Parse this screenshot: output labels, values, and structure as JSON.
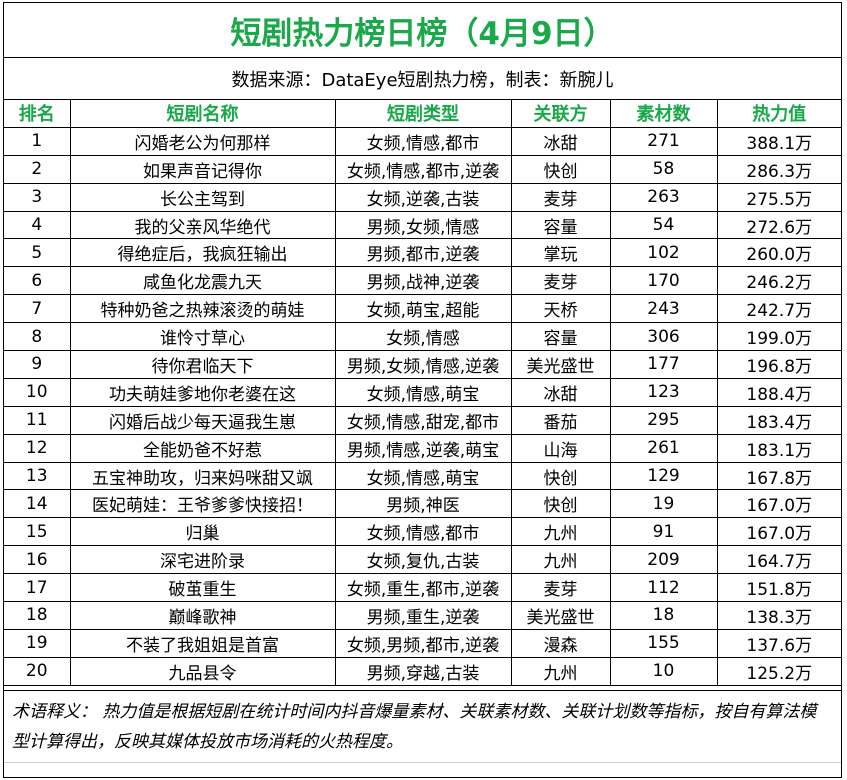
{
  "title": "短剧热力榜日榜（4月9日）",
  "source": "数据来源：DataEye短剧热力榜，制表：新腕儿",
  "headers": [
    "排名",
    "短剧名称",
    "短剧类型",
    "关联方",
    "素材数",
    "热力值"
  ],
  "rows": [
    {
      "rank": "1",
      "name": "闪婚老公为何那样",
      "type": "女频,情感,都市",
      "partner": "冰甜",
      "materials": "271",
      "heat": "388.1万"
    },
    {
      "rank": "2",
      "name": "如果声音记得你",
      "type": "女频,情感,都市,逆袭",
      "partner": "快创",
      "materials": "58",
      "heat": "286.3万"
    },
    {
      "rank": "3",
      "name": "长公主驾到",
      "type": "女频,逆袭,古装",
      "partner": "麦芽",
      "materials": "263",
      "heat": "275.5万"
    },
    {
      "rank": "4",
      "name": "我的父亲风华绝代",
      "type": "男频,女频,情感",
      "partner": "容量",
      "materials": "54",
      "heat": "272.6万"
    },
    {
      "rank": "5",
      "name": "得绝症后，我疯狂输出",
      "type": "男频,都市,逆袭",
      "partner": "掌玩",
      "materials": "102",
      "heat": "260.0万"
    },
    {
      "rank": "6",
      "name": "咸鱼化龙震九天",
      "type": "男频,战神,逆袭",
      "partner": "麦芽",
      "materials": "170",
      "heat": "246.2万"
    },
    {
      "rank": "7",
      "name": "特种奶爸之热辣滚烫的萌娃",
      "type": "女频,萌宝,超能",
      "partner": "天桥",
      "materials": "243",
      "heat": "242.7万"
    },
    {
      "rank": "8",
      "name": "谁怜寸草心",
      "type": "女频,情感",
      "partner": "容量",
      "materials": "306",
      "heat": "199.0万"
    },
    {
      "rank": "9",
      "name": "待你君临天下",
      "type": "男频,女频,情感,逆袭",
      "partner": "美光盛世",
      "materials": "177",
      "heat": "196.8万"
    },
    {
      "rank": "10",
      "name": "功夫萌娃爹地你老婆在这",
      "type": "女频,情感,萌宝",
      "partner": "冰甜",
      "materials": "123",
      "heat": "188.4万"
    },
    {
      "rank": "11",
      "name": "闪婚后战少每天逼我生崽",
      "type": "女频,情感,甜宠,都市",
      "partner": "番茄",
      "materials": "295",
      "heat": "183.4万"
    },
    {
      "rank": "12",
      "name": "全能奶爸不好惹",
      "type": "男频,情感,逆袭,萌宝",
      "partner": "山海",
      "materials": "261",
      "heat": "183.1万"
    },
    {
      "rank": "13",
      "name": "五宝神助攻，归来妈咪甜又飒",
      "type": "女频,情感,萌宝",
      "partner": "快创",
      "materials": "129",
      "heat": "167.8万"
    },
    {
      "rank": "14",
      "name": "医妃萌娃：王爷爹爹快接招！",
      "type": "男频,神医",
      "partner": "快创",
      "materials": "19",
      "heat": "167.0万"
    },
    {
      "rank": "15",
      "name": "归巢",
      "type": "女频,情感,都市",
      "partner": "九州",
      "materials": "91",
      "heat": "167.0万"
    },
    {
      "rank": "16",
      "name": "深宅进阶录",
      "type": "女频,复仇,古装",
      "partner": "九州",
      "materials": "209",
      "heat": "164.7万"
    },
    {
      "rank": "17",
      "name": "破茧重生",
      "type": "女频,重生,都市,逆袭",
      "partner": "麦芽",
      "materials": "112",
      "heat": "151.8万"
    },
    {
      "rank": "18",
      "name": "巅峰歌神",
      "type": "男频,重生,逆袭",
      "partner": "美光盛世",
      "materials": "18",
      "heat": "138.3万"
    },
    {
      "rank": "19",
      "name": "不装了我姐姐是首富",
      "type": "女频,男频,都市,逆袭",
      "partner": "漫森",
      "materials": "155",
      "heat": "137.6万"
    },
    {
      "rank": "20",
      "name": "九品县令",
      "type": "男频,穿越,古装",
      "partner": "九州",
      "materials": "10",
      "heat": "125.2万"
    }
  ],
  "note": "术语释义： 热力值是根据短剧在统计时间内抖音爆量素材、关联素材数、关联计划数等指标，按自有算法模型计算得出，反映其媒体投放市场消耗的火热程度。",
  "colors": {
    "accent": "#1aa84a",
    "text": "#000000",
    "border": "#000000"
  }
}
